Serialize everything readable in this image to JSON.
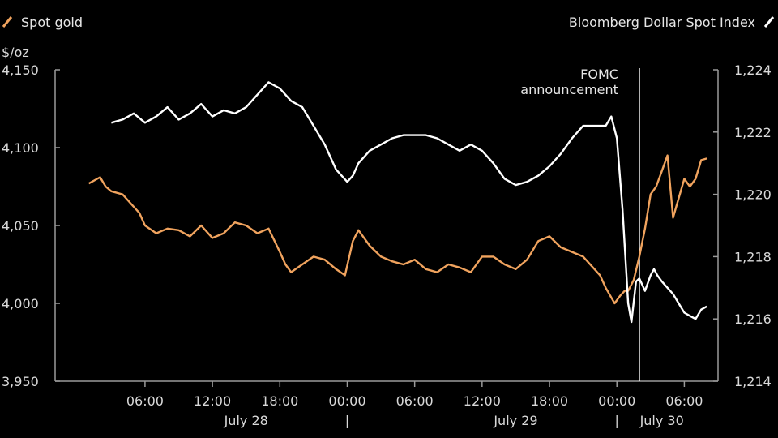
{
  "chart_data": {
    "type": "line",
    "legend": {
      "left": "Spot gold",
      "right": "Bloomberg Dollar Spot Index",
      "placement": "top"
    },
    "y_left": {
      "unit": "$/oz",
      "ylim": [
        3950,
        4150
      ],
      "ticks": [
        "4,150",
        "4,100",
        "4,050",
        "4,000",
        "3,950"
      ],
      "tick_values": [
        4150,
        4100,
        4050,
        4000,
        3950
      ]
    },
    "y_right": {
      "ylim": [
        1214,
        1224
      ],
      "ticks": [
        "1,224",
        "1,222",
        "1,220",
        "1,218",
        "1,216",
        "1,214"
      ],
      "tick_values": [
        1224,
        1222,
        1220,
        1218,
        1216,
        1214
      ]
    },
    "x_hours": {
      "range_hours": [
        -2,
        57
      ],
      "ticks": [
        "06:00",
        "12:00",
        "18:00",
        "00:00",
        "06:00",
        "12:00",
        "18:00",
        "00:00",
        "06:00"
      ],
      "tick_values": [
        6,
        12,
        18,
        24,
        30,
        36,
        42,
        48,
        54
      ]
    },
    "date_labels": [
      {
        "text": "July 28",
        "hour": 15
      },
      {
        "text": "July 29",
        "hour": 39
      },
      {
        "text": "July 30",
        "hour": 52
      }
    ],
    "day_separators_hours": [
      24,
      48
    ],
    "annotation": {
      "lines": [
        "FOMC",
        "announcement"
      ],
      "hour": 50
    },
    "colors": {
      "gold": "#f0a35e",
      "dollar": "#ffffff",
      "axis": "#9a9a9a"
    },
    "series": [
      {
        "name": "Spot gold",
        "axis": "left",
        "x": [
          1,
          2,
          2.5,
          3,
          4,
          5,
          5.5,
          6,
          7,
          8,
          9,
          10,
          11,
          12,
          13,
          14,
          15,
          16,
          17,
          18,
          18.5,
          19,
          20,
          21,
          22,
          23,
          23.8,
          24.5,
          25,
          26,
          27,
          28,
          29,
          30,
          31,
          32,
          33,
          34,
          35,
          36,
          37,
          38,
          39,
          40,
          41,
          42,
          43,
          44,
          45,
          46,
          46.5,
          47,
          47.8,
          48.3,
          48.7,
          49,
          49.5,
          50,
          50.5,
          51,
          51.5,
          52,
          52.5,
          53,
          54,
          54.5,
          55,
          55.5,
          56
        ],
        "values": [
          4077,
          4081,
          4075,
          4072,
          4070,
          4062,
          4058,
          4050,
          4045,
          4048,
          4047,
          4043,
          4050,
          4042,
          4045,
          4052,
          4050,
          4045,
          4048,
          4033,
          4025,
          4020,
          4025,
          4030,
          4028,
          4022,
          4018,
          4040,
          4047,
          4037,
          4030,
          4027,
          4025,
          4028,
          4022,
          4020,
          4025,
          4023,
          4020,
          4030,
          4030,
          4025,
          4022,
          4028,
          4040,
          4043,
          4036,
          4033,
          4030,
          4022,
          4018,
          4010,
          4000,
          4005,
          4008,
          4008,
          4015,
          4030,
          4048,
          4070,
          4075,
          4085,
          4095,
          4055,
          4080,
          4075,
          4080,
          4092,
          4093
        ]
      },
      {
        "name": "Bloomberg Dollar Spot Index",
        "axis": "right",
        "x": [
          3,
          4,
          5,
          6,
          7,
          8,
          9,
          10,
          11,
          12,
          13,
          14,
          15,
          16,
          17,
          18,
          19,
          20,
          21,
          22,
          23,
          24,
          24.5,
          25,
          26,
          27,
          28,
          29,
          30,
          31,
          32,
          33,
          34,
          35,
          36,
          37,
          38,
          39,
          40,
          41,
          42,
          43,
          44,
          45,
          46,
          47,
          47.5,
          48,
          48.5,
          49,
          49.3,
          49.7,
          50,
          50.5,
          51,
          51.3,
          51.6,
          52,
          52.5,
          53,
          54,
          54.5,
          55,
          55.5,
          56
        ],
        "values": [
          1222.3,
          1222.4,
          1222.6,
          1222.3,
          1222.5,
          1222.8,
          1222.4,
          1222.6,
          1222.9,
          1222.5,
          1222.7,
          1222.6,
          1222.8,
          1223.2,
          1223.6,
          1223.4,
          1223.0,
          1222.8,
          1222.2,
          1221.6,
          1220.8,
          1220.4,
          1220.6,
          1221.0,
          1221.4,
          1221.6,
          1221.8,
          1221.9,
          1221.9,
          1221.9,
          1221.8,
          1221.6,
          1221.4,
          1221.6,
          1221.4,
          1221.0,
          1220.5,
          1220.3,
          1220.4,
          1220.6,
          1220.9,
          1221.3,
          1221.8,
          1222.2,
          1222.2,
          1222.2,
          1222.5,
          1221.8,
          1219.5,
          1216.5,
          1215.9,
          1217.2,
          1217.3,
          1216.9,
          1217.4,
          1217.6,
          1217.4,
          1217.2,
          1217.0,
          1216.8,
          1216.2,
          1216.1,
          1216.0,
          1216.3,
          1216.4
        ]
      }
    ]
  }
}
